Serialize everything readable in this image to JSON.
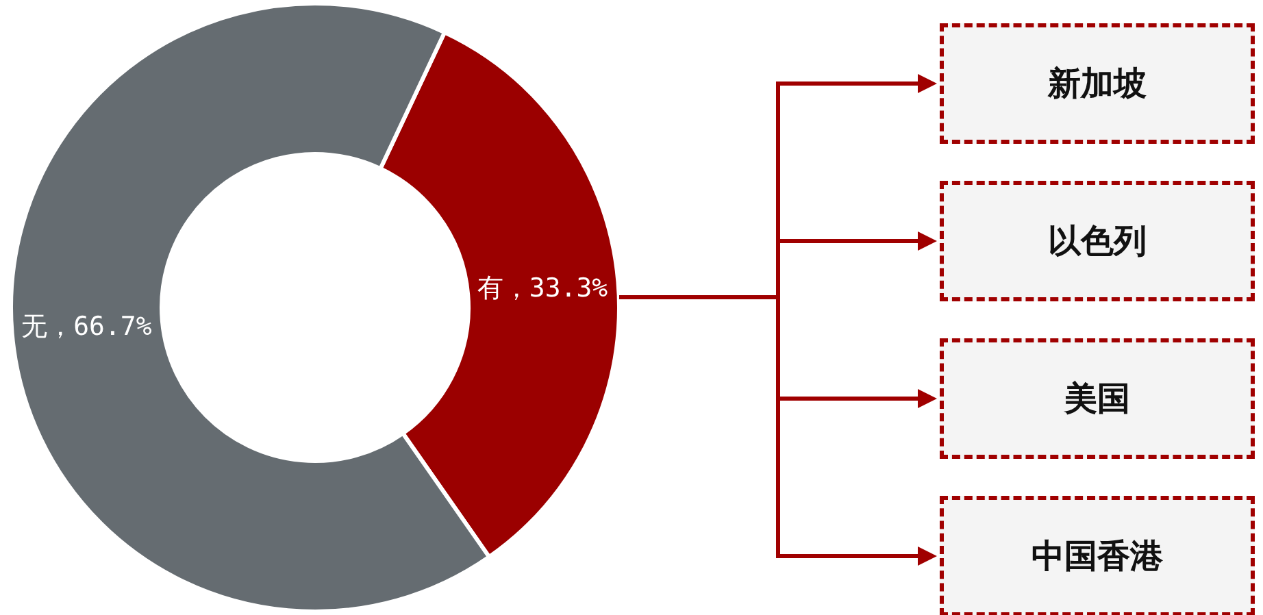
{
  "chart_data": {
    "type": "donut",
    "categories": [
      "有",
      "无"
    ],
    "values": [
      33.3,
      66.7
    ],
    "colors": [
      "#9b0000",
      "#656c71"
    ],
    "value_labels": [
      "，33.3%",
      "，66.7%"
    ],
    "annotations": [
      "新加坡",
      "以色列",
      "美国",
      "中国香港"
    ]
  }
}
